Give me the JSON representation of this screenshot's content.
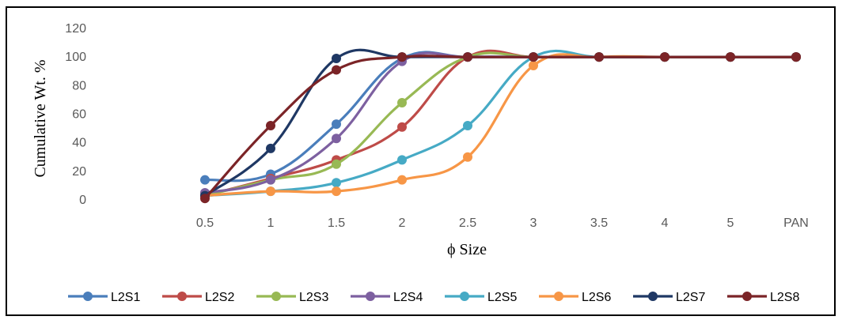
{
  "chart_data": {
    "type": "line",
    "title": "",
    "xlabel": "ϕ Size",
    "ylabel": "Cumulative Wt. %",
    "categories": [
      "0.5",
      "1",
      "1.5",
      "2",
      "2.5",
      "3",
      "3.5",
      "4",
      "5",
      "PAN"
    ],
    "ylim": [
      0,
      120
    ],
    "yticks": [
      0,
      20,
      40,
      60,
      80,
      100,
      120
    ],
    "grid": false,
    "legend_position": "bottom",
    "series": [
      {
        "name": "L2S1",
        "color": "#4A7EBB",
        "values": [
          14,
          18,
          53,
          99,
          100,
          100,
          100,
          100,
          100,
          100
        ]
      },
      {
        "name": "L2S2",
        "color": "#BE4B48",
        "values": [
          3,
          15,
          28,
          51,
          100,
          100,
          100,
          100,
          100,
          100
        ]
      },
      {
        "name": "L2S3",
        "color": "#98B954",
        "values": [
          3,
          14,
          25,
          68,
          100,
          100,
          100,
          100,
          100,
          100
        ]
      },
      {
        "name": "L2S4",
        "color": "#7D60A0",
        "values": [
          5,
          14,
          43,
          97,
          100,
          100,
          100,
          100,
          100,
          100
        ]
      },
      {
        "name": "L2S5",
        "color": "#46AAC5",
        "values": [
          3,
          6,
          12,
          28,
          52,
          100,
          100,
          100,
          100,
          100
        ]
      },
      {
        "name": "L2S6",
        "color": "#F79646",
        "values": [
          3,
          6,
          6,
          14,
          30,
          94,
          100,
          100,
          100,
          100
        ]
      },
      {
        "name": "L2S7",
        "color": "#1F3864",
        "values": [
          3,
          36,
          99,
          100,
          100,
          100,
          100,
          100,
          100,
          100
        ]
      },
      {
        "name": "L2S8",
        "color": "#7B2427",
        "values": [
          1,
          52,
          91,
          100,
          100,
          100,
          100,
          100,
          100,
          100
        ]
      }
    ]
  }
}
